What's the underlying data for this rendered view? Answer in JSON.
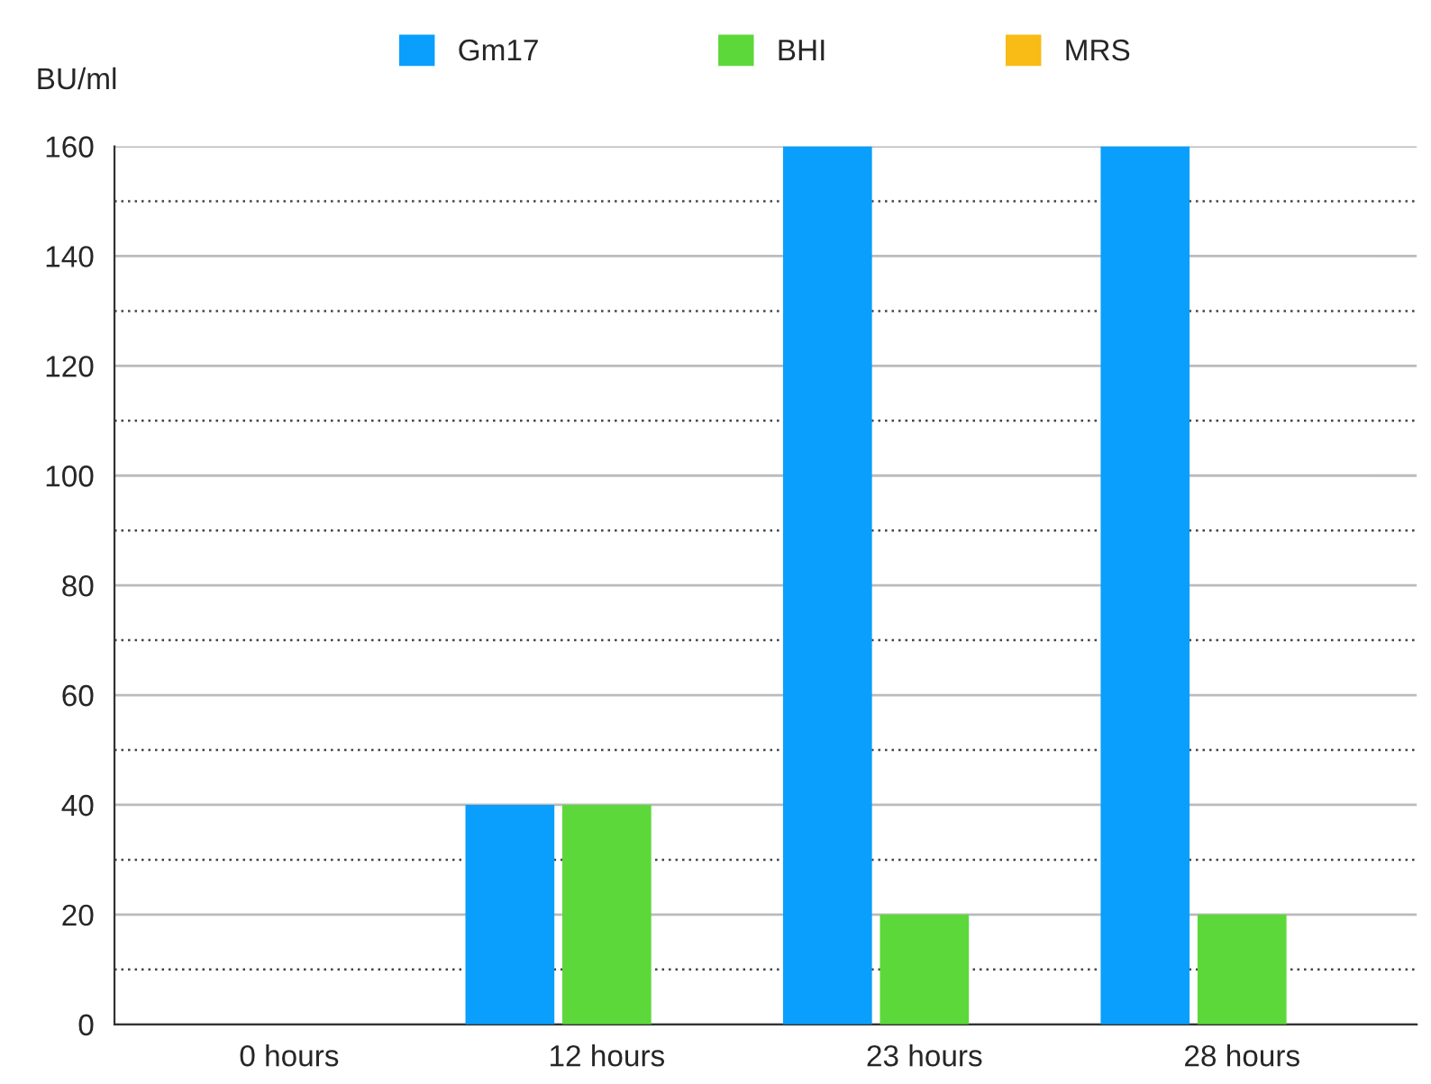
{
  "chart_data": {
    "type": "bar",
    "ylabel": "BU/ml",
    "categories": [
      "0 hours",
      "12 hours",
      "23 hours",
      "28 hours"
    ],
    "series": [
      {
        "name": "Gm17",
        "color": "#0a9ffc",
        "values": [
          null,
          40,
          160,
          160
        ]
      },
      {
        "name": "BHI",
        "color": "#5cd83a",
        "values": [
          null,
          40,
          20,
          20
        ]
      },
      {
        "name": "MRS",
        "color": "#f9bb16",
        "values": [
          null,
          null,
          null,
          null
        ]
      }
    ],
    "ylim": [
      0,
      160
    ],
    "yticks": [
      0,
      {
        "value": 10,
        "label": null
      },
      20,
      {
        "value": 30,
        "label": null
      },
      40,
      {
        "value": 50,
        "label": null
      },
      60,
      {
        "value": 70,
        "label": null
      },
      80,
      {
        "value": 90,
        "label": null
      },
      100,
      {
        "value": 110,
        "label": null
      },
      120,
      {
        "value": 130,
        "label": null
      },
      140,
      {
        "value": 150,
        "label": null
      },
      160
    ],
    "grid": "y",
    "legend": "top"
  }
}
